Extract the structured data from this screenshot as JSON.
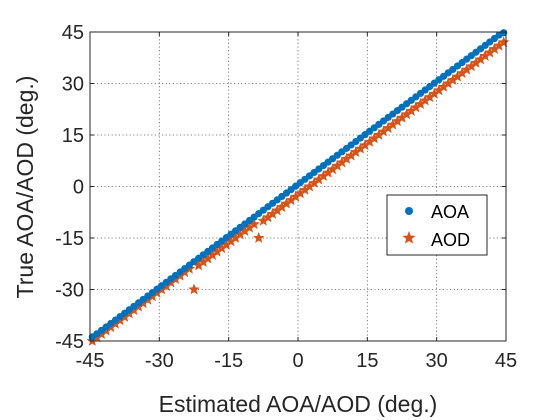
{
  "chart_data": {
    "type": "scatter",
    "title": "",
    "xlabel": "Estimated AOA/AOD (deg.)",
    "ylabel": "True AOA/AOD (deg.)",
    "xlim": [
      -45,
      45
    ],
    "ylim": [
      -45,
      45
    ],
    "x_ticks": [
      -45,
      -30,
      -15,
      0,
      15,
      30,
      45
    ],
    "y_ticks": [
      -45,
      -30,
      -15,
      0,
      15,
      30,
      45
    ],
    "x_tick_labels": [
      "-45",
      "-30",
      "-15",
      "0",
      "15",
      "30",
      "45"
    ],
    "y_tick_labels": [
      "-45",
      "-30",
      "-15",
      "0",
      "15",
      "30",
      "45"
    ],
    "grid": true,
    "legend_position": "right",
    "series": [
      {
        "name": "AOA",
        "marker": "circle",
        "color": "#0072BD",
        "x": [
          -44.5,
          -43.5,
          -42.5,
          -41.5,
          -40.5,
          -39.5,
          -38.5,
          -37.5,
          -36.5,
          -35.5,
          -34.5,
          -33.5,
          -32.5,
          -31.5,
          -30.5,
          -29.5,
          -28.5,
          -27.5,
          -26.5,
          -25.5,
          -24.5,
          -23.5,
          -22.5,
          -21.5,
          -20.5,
          -19.5,
          -18.5,
          -17.5,
          -16.5,
          -15.5,
          -14.5,
          -13.5,
          -12.5,
          -11.5,
          -10.5,
          -9.5,
          -8.5,
          -7.5,
          -6.5,
          -5.5,
          -4.5,
          -3.5,
          -2.5,
          -1.5,
          -0.5,
          0.5,
          1.5,
          2.5,
          3.5,
          4.5,
          5.5,
          6.5,
          7.5,
          8.5,
          9.5,
          10.5,
          11.5,
          12.5,
          13.5,
          14.5,
          15.5,
          16.5,
          17.5,
          18.5,
          19.5,
          20.5,
          21.5,
          22.5,
          23.5,
          24.5,
          25.5,
          26.5,
          27.5,
          28.5,
          29.5,
          30.5,
          31.5,
          32.5,
          33.5,
          34.5,
          35.5,
          36.5,
          37.5,
          38.5,
          39.5,
          40.5,
          41.5,
          42.5,
          43.5,
          44.5
        ],
        "y": [
          -43.8,
          -42.9,
          -41.9,
          -40.9,
          -39.9,
          -38.9,
          -37.9,
          -36.9,
          -35.9,
          -34.9,
          -33.9,
          -32.9,
          -31.9,
          -30.9,
          -29.9,
          -28.9,
          -27.9,
          -26.9,
          -25.9,
          -24.9,
          -23.9,
          -22.9,
          -21.9,
          -20.9,
          -19.9,
          -18.9,
          -17.9,
          -16.9,
          -15.9,
          -14.9,
          -13.9,
          -12.9,
          -11.9,
          -10.9,
          -9.9,
          -8.9,
          -7.9,
          -6.9,
          -5.9,
          -4.9,
          -3.9,
          -2.9,
          -1.9,
          -0.9,
          0.1,
          1.1,
          2.1,
          3.1,
          4.1,
          5.1,
          6.1,
          7.1,
          8.1,
          9.1,
          10.1,
          11.1,
          12.1,
          13.1,
          14.1,
          15.1,
          16.1,
          17.1,
          18.1,
          19.1,
          20.1,
          21.1,
          22.1,
          23.1,
          24.1,
          25.1,
          26.1,
          27.1,
          28.1,
          29.1,
          30.1,
          31.1,
          32.1,
          33.1,
          34.1,
          35.1,
          36.1,
          37.1,
          38.1,
          39.1,
          40.1,
          41.1,
          42.1,
          43.1,
          44.1,
          44.8
        ]
      },
      {
        "name": "AOD",
        "marker": "star",
        "color": "#D95319",
        "x": [
          -44.5,
          -43.5,
          -42.5,
          -41.5,
          -40.5,
          -39.5,
          -38.5,
          -37.5,
          -36.5,
          -35.5,
          -34.5,
          -33.5,
          -32.5,
          -31.5,
          -30.5,
          -29.5,
          -28.5,
          -27.5,
          -26.5,
          -25.5,
          -24.5,
          -23.5,
          -22.5,
          -21.5,
          -20.5,
          -19.5,
          -18.5,
          -17.5,
          -16.5,
          -15.5,
          -14.5,
          -13.5,
          -12.5,
          -11.5,
          -10.5,
          -9.5,
          -8.5,
          -7.5,
          -6.5,
          -5.5,
          -4.5,
          -3.5,
          -2.5,
          -1.5,
          -0.5,
          0.5,
          1.5,
          2.5,
          3.5,
          4.5,
          5.5,
          6.5,
          7.5,
          8.5,
          9.5,
          10.5,
          11.5,
          12.5,
          13.5,
          14.5,
          15.5,
          16.5,
          17.5,
          18.5,
          19.5,
          20.5,
          21.5,
          22.5,
          23.5,
          24.5,
          25.5,
          26.5,
          27.5,
          28.5,
          29.5,
          30.5,
          31.5,
          32.5,
          33.5,
          34.5,
          35.5,
          36.5,
          37.5,
          38.5,
          39.5,
          40.5,
          41.5,
          42.5,
          43.5,
          44.5
        ],
        "y": [
          -45,
          -44,
          -43,
          -42,
          -41,
          -40,
          -39,
          -38,
          -37,
          -36,
          -35,
          -34,
          -33,
          -32,
          -31,
          -30,
          -29,
          -28,
          -27,
          -26,
          -25,
          -24,
          -30,
          -23,
          -22,
          -21,
          -20,
          -19,
          -18,
          -17,
          -16,
          -15,
          -14,
          -13,
          -12,
          -11,
          -15,
          -10,
          -9,
          -8,
          -7,
          -6,
          -5,
          -4,
          -3,
          -2,
          -1,
          0,
          1,
          2,
          3,
          4,
          5,
          6,
          7,
          8,
          9,
          10,
          11,
          12,
          13,
          14,
          15,
          16,
          17,
          18,
          19,
          20,
          21,
          22,
          23,
          24,
          25,
          26,
          27,
          28,
          29,
          30,
          31,
          32,
          33,
          34,
          35,
          36,
          37,
          38,
          39,
          40,
          41,
          42
        ]
      }
    ]
  }
}
